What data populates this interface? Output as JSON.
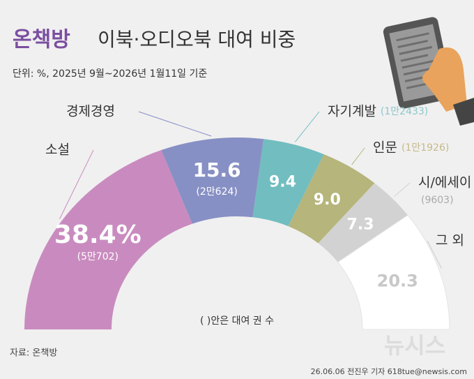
{
  "chart_data": {
    "type": "half-donut",
    "title_brand": "온책방",
    "title": "이북·오디오북 대여 비중",
    "subtitle": "단위: %, 2025년 9월~2026년 1월11일 기준",
    "categories": [
      "소설",
      "경제경영",
      "자기계발",
      "인문",
      "시/에세이",
      "그 외"
    ],
    "values": [
      38.4,
      15.6,
      9.4,
      9.0,
      7.3,
      20.3
    ],
    "value_labels": [
      "38.4%",
      "15.6",
      "9.4",
      "9.0",
      "7.3",
      "20.3"
    ],
    "count_labels": [
      "(5만702)",
      "(2만624)",
      "(1만2433)",
      "(1만1926)",
      "(9603)",
      null
    ],
    "colors": [
      "#c98bbf",
      "#8790c4",
      "#72bdc0",
      "#b5b57c",
      "#d2d2d2",
      "#ffffff"
    ],
    "note": "( )안은 대여 권 수",
    "source": "자료: 온책방",
    "credit": "26.06.06 전진우 기자 618tue@newsis.com",
    "logo": "뉴시스"
  }
}
